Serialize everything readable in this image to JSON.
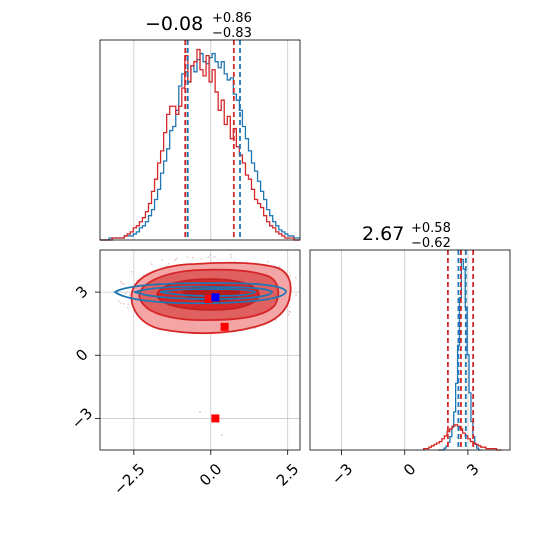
{
  "chart_data": {
    "type": "corner",
    "panels": {
      "marginal_x": {
        "title": {
          "median": "−0.08",
          "plus": "+0.86",
          "minus": "−0.83"
        },
        "xlim": [
          -3.6,
          2.9
        ],
        "grid": true,
        "vlines": [
          {
            "color": "#d62728",
            "values": [
              -0.83,
              -0.75,
              0.75
            ]
          },
          {
            "color": "#1f77b4",
            "values": [
              -0.75,
              0.95
            ]
          }
        ],
        "series": [
          {
            "color": "#1f77b4",
            "edges": [
              -3.6,
              2.9
            ],
            "counts": [
              0,
              0,
              0,
              1,
              1,
              1,
              1,
              1,
              2,
              2,
              2,
              3,
              4,
              6,
              7,
              9,
              12,
              15,
              20,
              25,
              33,
              39,
              45,
              54,
              56,
              64,
              76,
              82,
              83,
              78,
              86,
              83,
              89,
              92,
              88,
              87,
              90,
              92,
              88,
              85,
              88,
              82,
              79,
              80,
              72,
              69,
              64,
              56,
              50,
              44,
              38,
              34,
              29,
              24,
              20,
              15,
              12,
              9,
              7,
              5,
              4,
              3,
              2,
              2,
              1,
              1
            ]
          },
          {
            "color": "#d62728",
            "edges": [
              -3.6,
              2.9
            ],
            "counts": [
              0,
              0,
              0,
              0,
              1,
              1,
              1,
              1,
              2,
              3,
              4,
              6,
              7,
              9,
              11,
              14,
              18,
              24,
              30,
              38,
              44,
              53,
              62,
              66,
              66,
              62,
              66,
              75,
              91,
              78,
              86,
              88,
              94,
              84,
              81,
              91,
              78,
              84,
              73,
              64,
              69,
              57,
              61,
              50,
              55,
              46,
              42,
              38,
              32,
              30,
              25,
              20,
              18,
              16,
              12,
              9,
              7,
              6,
              4,
              3,
              2,
              1,
              1,
              1,
              0,
              0
            ]
          }
        ]
      },
      "joint": {
        "xlim": [
          -3.6,
          2.9
        ],
        "ylim": [
          -4.5,
          5.0
        ],
        "grid": true,
        "red_points": [
          [
            -0.07,
            2.67
          ],
          [
            0.45,
            1.35
          ],
          [
            0.15,
            -3.0
          ]
        ],
        "blue_points": [
          [
            0.15,
            2.75
          ]
        ]
      },
      "marginal_y": {
        "title": {
          "median": "2.67",
          "plus": "+0.58",
          "minus": "−0.62"
        },
        "xlim": [
          -4.5,
          5.0
        ],
        "grid": true,
        "vlines": [
          {
            "color": "#d62728",
            "values": [
              2.05,
              2.67,
              3.25
            ]
          },
          {
            "color": "#1f77b4",
            "values": [
              2.55,
              2.9
            ]
          }
        ],
        "series": [
          {
            "color": "#1f77b4",
            "edges": [
              1.6,
              3.6
            ],
            "counts": [
              0,
              0,
              0,
              1,
              2,
              4,
              7,
              12,
              20,
              35,
              55,
              80,
              100,
              95,
              75,
              50,
              30,
              15,
              7,
              3,
              1,
              0
            ]
          },
          {
            "color": "#d62728",
            "edges": [
              0.9,
              4.6
            ],
            "counts": [
              1,
              1,
              2,
              3,
              4,
              5,
              6,
              8,
              10,
              13,
              15,
              17,
              18,
              17,
              15,
              12,
              10,
              8,
              6,
              5,
              4,
              3,
              2,
              2,
              1,
              1,
              1,
              1,
              0,
              0
            ]
          }
        ]
      }
    },
    "ticks": {
      "joint_x": [
        "−2.5",
        "0.0",
        "2.5"
      ],
      "joint_y": [
        "3",
        "0",
        "−3"
      ],
      "marginal_y_x": [
        "−3",
        "0",
        "3"
      ]
    }
  }
}
